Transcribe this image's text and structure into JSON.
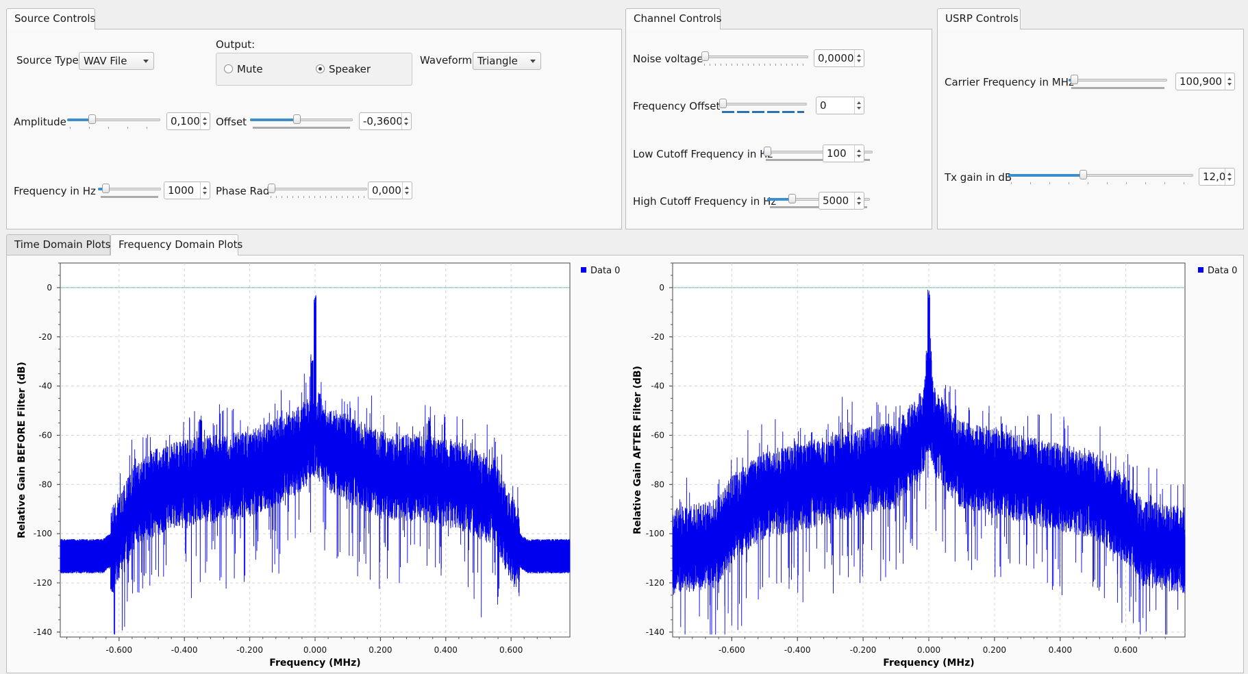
{
  "source_controls": {
    "tab": "Source Controls",
    "source_type_label": "Source Type:",
    "source_type_value": "WAV File",
    "output_label": "Output:",
    "mute_label": "Mute",
    "speaker_label": "Speaker",
    "output_selected": "Speaker",
    "waveform_label": "Waveform:",
    "waveform_value": "Triangle",
    "amplitude_label": "Amplitude",
    "amplitude_value": "0,100",
    "amplitude_level": 0.25,
    "offset_label": "Offset",
    "offset_value": "-0,3600",
    "offset_level": 0.45,
    "frequency_label": "Frequency in Hz",
    "frequency_value": "1000",
    "frequency_level": 0.07,
    "phase_label": "Phase Rad",
    "phase_value": "0,000",
    "phase_level": 0.0
  },
  "channel_controls": {
    "tab": "Channel Controls",
    "noise_label": "Noise voltage",
    "noise_value": "0,0000",
    "noise_level": 0.0,
    "freq_offset_label": "Frequency Offset",
    "freq_offset_value": "0",
    "freq_offset_level": 0.0,
    "low_cutoff_label": "Low Cutoff Frequency in Hz",
    "low_cutoff_value": "100",
    "low_cutoff_level": 0.01,
    "high_cutoff_label": "High Cutoff Frequency in Hz",
    "high_cutoff_value": "5000",
    "high_cutoff_level": 0.22
  },
  "usrp_controls": {
    "tab": "USRP Controls",
    "carrier_label": "Carrier Frequency in MHz",
    "carrier_value": "100,900",
    "carrier_level": 0.02,
    "tx_gain_label": "Tx gain in dB",
    "tx_gain_value": "12,0",
    "tx_gain_level": 0.4
  },
  "plot_tabs": {
    "time_domain": "Time Domain Plots",
    "frequency_domain": "Frequency Domain Plots",
    "active": "Frequency Domain Plots"
  },
  "colors": {
    "trace": "#0000ee",
    "reference_line": "#009a8a",
    "slider_fill": "#3c8fcc"
  },
  "chart_data": [
    {
      "type": "line",
      "ylabel": "Relative Gain BEFORE Filter (dB)",
      "xlabel": "Frequency (MHz)",
      "xlim": [
        -0.78,
        0.78
      ],
      "ylim": [
        -142,
        10
      ],
      "xticks": [
        "-0.600",
        "-0.400",
        "-0.200",
        "0.000",
        "0.200",
        "0.400",
        "0.600"
      ],
      "yticks": [
        "0",
        "-20",
        "-40",
        "-60",
        "-80",
        "-100",
        "-120",
        "-140"
      ],
      "legend": [
        "Data 0"
      ],
      "legend_position": "top-right",
      "grid": true,
      "reference_line_db": 0,
      "series": [
        {
          "name": "Data 0",
          "envelope_x": [
            -0.78,
            -0.65,
            -0.63,
            -0.58,
            -0.55,
            -0.45,
            -0.35,
            -0.2,
            -0.05,
            0.0,
            0.05,
            0.2,
            0.35,
            0.45,
            0.55,
            0.58,
            0.63,
            0.65,
            0.78
          ],
          "envelope_db": [
            -107,
            -107,
            -105,
            -93,
            -83,
            -77,
            -74,
            -72,
            -62,
            -55,
            -62,
            -72,
            -74,
            -77,
            -83,
            -93,
            -105,
            -107,
            -107
          ],
          "peaks": [
            {
              "x": 0.0,
              "db": -9
            },
            {
              "x": -0.01,
              "db": -33
            },
            {
              "x": -0.35,
              "db": -58
            },
            {
              "x": 0.35,
              "db": -58
            }
          ]
        }
      ]
    },
    {
      "type": "line",
      "ylabel": "Relative Gain AFTER Filter (dB)",
      "xlabel": "Frequency (MHz)",
      "xlim": [
        -0.78,
        0.78
      ],
      "ylim": [
        -142,
        10
      ],
      "xticks": [
        "-0.600",
        "-0.400",
        "-0.200",
        "0.000",
        "0.200",
        "0.400",
        "0.600"
      ],
      "yticks": [
        "0",
        "-20",
        "-40",
        "-60",
        "-80",
        "-100",
        "-120",
        "-140"
      ],
      "legend": [
        "Data 0"
      ],
      "legend_position": "top-right",
      "grid": true,
      "reference_line_db": 0,
      "series": [
        {
          "name": "Data 0",
          "envelope_x": [
            -0.78,
            -0.65,
            -0.6,
            -0.5,
            -0.3,
            -0.1,
            -0.02,
            0.0,
            0.02,
            0.1,
            0.3,
            0.5,
            0.6,
            0.65,
            0.78
          ],
          "envelope_db": [
            -103,
            -100,
            -90,
            -80,
            -74,
            -68,
            -55,
            -44,
            -55,
            -68,
            -74,
            -80,
            -90,
            -100,
            -103
          ],
          "peaks": [
            {
              "x": 0.0,
              "db": -6
            },
            {
              "x": -0.005,
              "db": -31
            },
            {
              "x": 0.005,
              "db": -31
            }
          ]
        }
      ]
    }
  ]
}
